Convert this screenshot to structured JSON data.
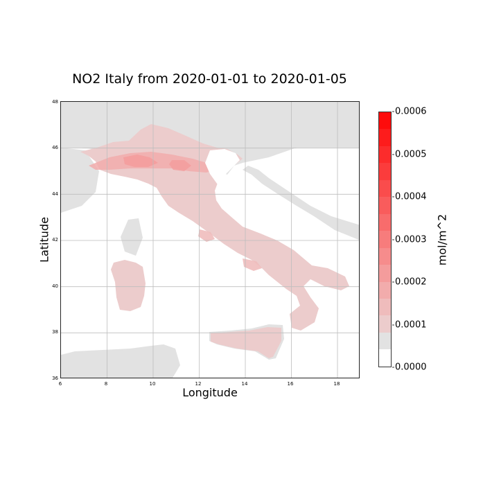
{
  "map": {
    "title": "NO2 Italy from 2020-01-01 to 2020-01-05",
    "xlabel": "Longitude",
    "ylabel": "Latitude",
    "x_ticks": [
      "6",
      "8",
      "10",
      "12",
      "14",
      "16",
      "18"
    ],
    "y_ticks": [
      "48",
      "46",
      "44",
      "42",
      "40",
      "38",
      "36"
    ],
    "extent": {
      "lon": [
        6,
        19
      ],
      "lat": [
        36,
        48
      ]
    },
    "colors": {
      "land_background": "#e2e2e2",
      "sea": "#ffffff",
      "grid": "#bdbdbd"
    }
  },
  "colorbar": {
    "label": "mol/m^2",
    "tick_labels": [
      "0.0006",
      "0.0005",
      "0.0004",
      "0.0003",
      "0.0002",
      "0.0001",
      "0.0000"
    ],
    "range": [
      0,
      0.0006
    ],
    "bands": [
      "#ffffff",
      "#e2e2e2",
      "#eccccc",
      "#efbcbc",
      "#f2acac",
      "#f49c9c",
      "#f68c8c",
      "#f77c7c",
      "#f86c6c",
      "#f95c5c",
      "#fa4c4c",
      "#fb3c3c",
      "#fc2c2c",
      "#fd1c1c",
      "#fe0c0c"
    ]
  }
}
